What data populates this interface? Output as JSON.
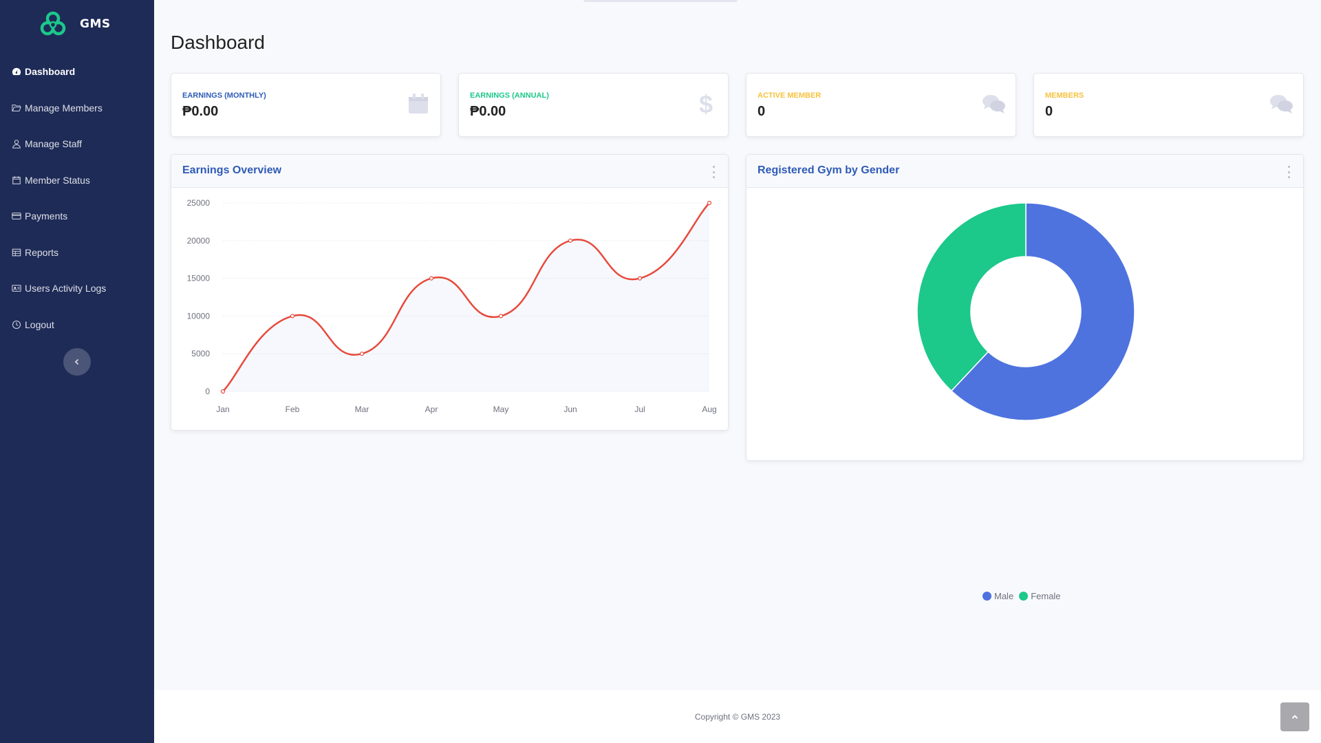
{
  "brand": {
    "name": "GMS"
  },
  "sidebar": {
    "items": [
      {
        "label": "Dashboard",
        "icon": "gauge-icon",
        "active": true
      },
      {
        "label": "Manage Members",
        "icon": "folder-open-icon"
      },
      {
        "label": "Manage Staff",
        "icon": "user-icon"
      },
      {
        "label": "Member Status",
        "icon": "calendar-icon"
      },
      {
        "label": "Payments",
        "icon": "credit-card-icon"
      },
      {
        "label": "Reports",
        "icon": "table-icon"
      },
      {
        "label": "Users Activity Logs",
        "icon": "id-card-icon"
      },
      {
        "label": "Logout",
        "icon": "clock-icon"
      }
    ]
  },
  "page": {
    "title": "Dashboard"
  },
  "stats": [
    {
      "label": "Earnings (Monthly)",
      "value": "₱0.00",
      "color": "#2f5bb7",
      "icon": "calendar-icon"
    },
    {
      "label": "Earnings (Annual)",
      "value": "₱0.00",
      "color": "#1cc88a",
      "icon": "dollar-icon"
    },
    {
      "label": "Active Member",
      "value": "0",
      "color": "#f6c23e",
      "icon": "comments-icon"
    },
    {
      "label": "Members",
      "value": "0",
      "color": "#f6c23e",
      "icon": "comments-icon"
    }
  ],
  "earnings_panel": {
    "title": "Earnings Overview"
  },
  "gender_panel": {
    "title": "Registered Gym by Gender"
  },
  "chart_data": [
    {
      "type": "area",
      "title": "Earnings Overview",
      "categories": [
        "Jan",
        "Feb",
        "Mar",
        "Apr",
        "May",
        "Jun",
        "Jul",
        "Aug"
      ],
      "series": [
        {
          "values": [
            0,
            10000,
            5000,
            15000,
            10000,
            20000,
            15000,
            25000
          ],
          "color": "#e74a3b"
        }
      ],
      "yticks": [
        0,
        5000,
        10000,
        15000,
        20000,
        25000
      ],
      "ylim": [
        0,
        25000
      ],
      "grid": true
    },
    {
      "type": "pie",
      "title": "Registered Gym by Gender",
      "labels": [
        "Male",
        "Female"
      ],
      "values": [
        62,
        38
      ],
      "colors": [
        "#4e73df",
        "#1cc88a"
      ],
      "legend": "bottom"
    }
  ],
  "footer": {
    "copyright": "Copyright © GMS 2023"
  }
}
